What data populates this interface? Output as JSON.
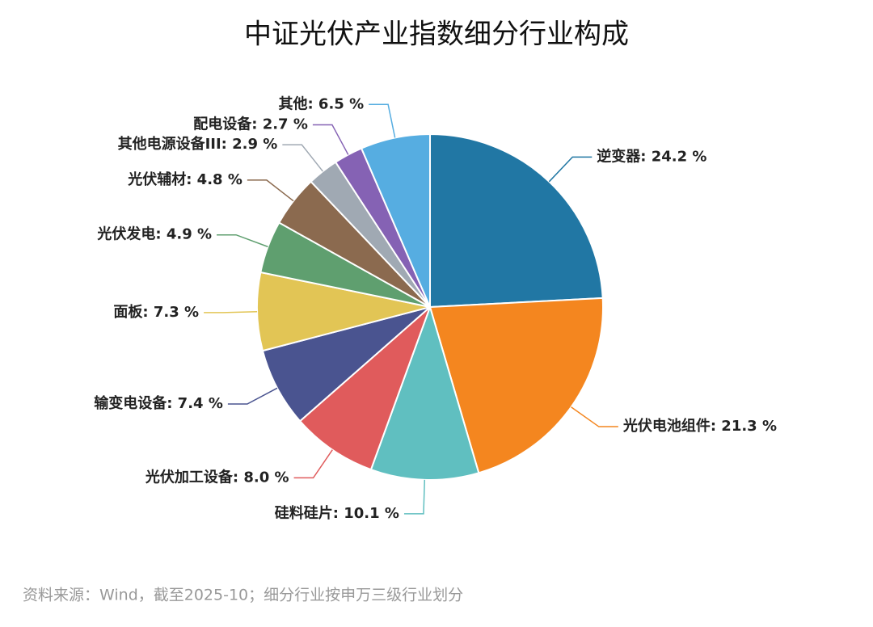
{
  "chart_data": {
    "type": "pie",
    "title": "中证光伏产业指数细分行业构成",
    "source": "资料来源：Wind，截至2025-10；细分行业按申万三级行业划分",
    "values": [
      24.2,
      21.3,
      10.1,
      8.0,
      7.4,
      7.3,
      4.9,
      4.8,
      2.9,
      2.7,
      6.5
    ],
    "value_labels": [
      "逆变器: 24.2 %",
      "光伏电池组件: 21.3 %",
      "硅料硅片: 10.1 %",
      "光伏加工设备: 8.0 %",
      "输变电设备: 7.4 %",
      "面板: 7.3 %",
      "光伏发电: 4.9 %",
      "光伏辅材: 4.8 %",
      "其他电源设备III: 2.9 %",
      "配电设备: 2.7 %",
      "其他: 6.5 %"
    ],
    "colors": [
      "#2177a4",
      "#f4861f",
      "#60bfc0",
      "#e05b5c",
      "#4a5490",
      "#e2c555",
      "#5f9f6f",
      "#8b6a4f",
      "#a0a9b3",
      "#8562b4",
      "#56ade1"
    ]
  }
}
